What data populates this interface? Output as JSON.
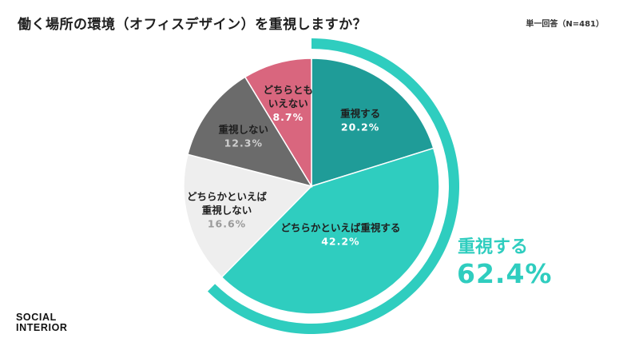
{
  "title": "働く場所の環境（オフィスデザイン）を重視しますか？",
  "note": "単一回答（N=481）",
  "logo": {
    "line1": "SOCIAL",
    "line2": "INTERIOR"
  },
  "chart_data": {
    "type": "pie",
    "title": "働く場所の環境（オフィスデザイン）を重視しますか？",
    "slices": [
      {
        "name": "重視する",
        "label_lines": [
          "重視する"
        ],
        "value": 20.2,
        "value_label": "20.2%",
        "color": "#1f9c98",
        "text_color": "#1f1f1f",
        "value_color": "#ffffff"
      },
      {
        "name": "どちらかといえば重視する",
        "label_lines": [
          "どちらかといえば重視する"
        ],
        "value": 42.2,
        "value_label": "42.2%",
        "color": "#2fcdbf",
        "text_color": "#1f1f1f",
        "value_color": "#ffffff"
      },
      {
        "name": "どちらかといえば重視しない",
        "label_lines": [
          "どちらかといえば",
          "重視しない"
        ],
        "value": 16.6,
        "value_label": "16.6%",
        "color": "#eeeeee",
        "text_color": "#1f1f1f",
        "value_color": "#9a9a9a"
      },
      {
        "name": "重視しない",
        "label_lines": [
          "重視しない"
        ],
        "value": 12.3,
        "value_label": "12.3%",
        "color": "#6b6b6b",
        "text_color": "#1f1f1f",
        "value_color": "#cfcfcf"
      },
      {
        "name": "どちらともいえない",
        "label_lines": [
          "どちらとも",
          "いえない"
        ],
        "value": 8.7,
        "value_label": "8.7%",
        "color": "#d9667e",
        "text_color": "#1f1f1f",
        "value_color": "#ffffff"
      }
    ],
    "summary": {
      "label": "重視する",
      "value": 62.4,
      "value_label": "62.4%",
      "color": "#2fcdbf",
      "covers": [
        "重視する",
        "どちらかといえば重視する"
      ]
    }
  }
}
